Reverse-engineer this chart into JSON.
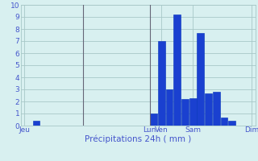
{
  "bars": [
    {
      "x": 2,
      "value": 0.4
    },
    {
      "x": 17,
      "value": 1.0
    },
    {
      "x": 18,
      "value": 7.0
    },
    {
      "x": 19,
      "value": 3.0
    },
    {
      "x": 20,
      "value": 9.2
    },
    {
      "x": 21,
      "value": 2.2
    },
    {
      "x": 22,
      "value": 2.3
    },
    {
      "x": 23,
      "value": 7.7
    },
    {
      "x": 24,
      "value": 2.7
    },
    {
      "x": 25,
      "value": 2.8
    },
    {
      "x": 26,
      "value": 0.7
    },
    {
      "x": 27,
      "value": 0.4
    }
  ],
  "xlim": [
    0,
    30
  ],
  "ylim": [
    0,
    10
  ],
  "yticks": [
    0,
    1,
    2,
    3,
    4,
    5,
    6,
    7,
    8,
    9,
    10
  ],
  "xlabel": "Précipitations 24h ( mm )",
  "bar_color": "#1a40d0",
  "bar_edge_color": "#0030bb",
  "background_color": "#d8f0f0",
  "grid_color": "#a8c8c8",
  "tick_label_color": "#4455cc",
  "xlabel_color": "#4455cc",
  "xtick_positions": [
    0.5,
    8,
    16.5,
    18,
    22,
    29.5
  ],
  "xtick_labels": [
    "Jeu",
    "",
    "Lun",
    "Ven",
    "Sam",
    "Dim"
  ],
  "vline_positions": [
    8,
    16.5
  ],
  "vline_color": "#666677",
  "bar_width": 0.9
}
